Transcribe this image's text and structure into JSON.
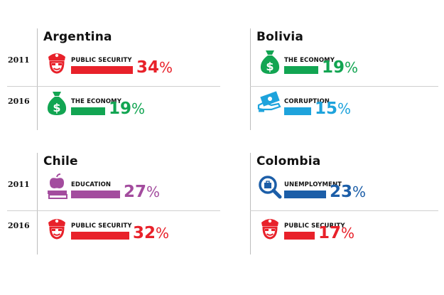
{
  "chart_data": {
    "type": "bar",
    "years": [
      "2011",
      "2016"
    ],
    "panels": [
      {
        "country": "Argentina",
        "entries": [
          {
            "year": "2011",
            "issue": "PUBLIC SECURITY",
            "value": 34,
            "color": "#e8212a",
            "icon": "police-cap-icon"
          },
          {
            "year": "2016",
            "issue": "THE ECONOMY",
            "value": 19,
            "color": "#12a552",
            "icon": "money-bag-icon"
          }
        ]
      },
      {
        "country": "Bolivia",
        "entries": [
          {
            "year": "2011",
            "issue": "THE ECONOMY",
            "value": 19,
            "color": "#12a552",
            "icon": "money-bag-icon"
          },
          {
            "year": "2016",
            "issue": "CORRUPTION",
            "value": 15,
            "color": "#1ea3dc",
            "icon": "bribe-cash-icon"
          }
        ]
      },
      {
        "country": "Chile",
        "entries": [
          {
            "year": "2011",
            "issue": "EDUCATION",
            "value": 27,
            "color": "#a34c9e",
            "icon": "apple-books-icon"
          },
          {
            "year": "2016",
            "issue": "PUBLIC SECURITY",
            "value": 32,
            "color": "#e8212a",
            "icon": "police-cap-icon"
          }
        ]
      },
      {
        "country": "Colombia",
        "entries": [
          {
            "year": "2011",
            "issue": "UNEMPLOYMENT",
            "value": 23,
            "color": "#1c5ea8",
            "icon": "job-search-icon"
          },
          {
            "year": "2016",
            "issue": "PUBLIC SECURITY",
            "value": 17,
            "color": "#e8212a",
            "icon": "police-cap-icon"
          }
        ]
      }
    ]
  }
}
